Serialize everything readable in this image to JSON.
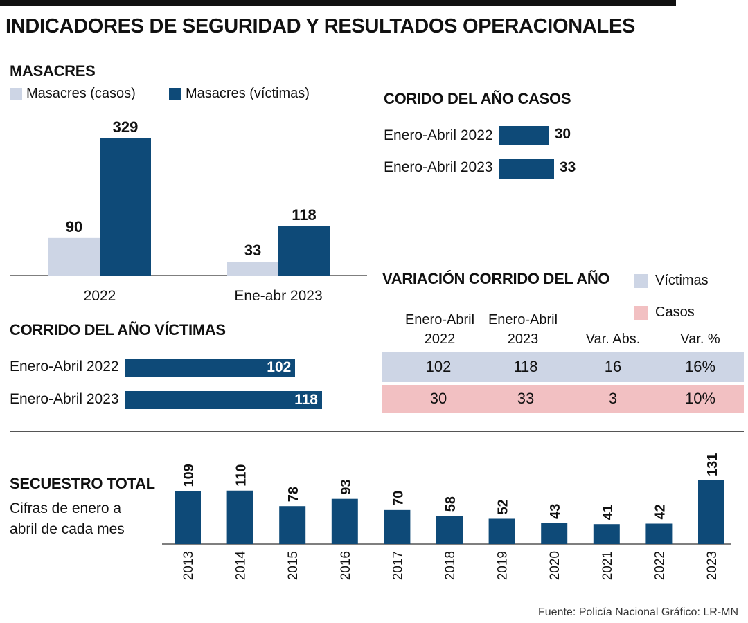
{
  "title": "INDICADORES DE SEGURIDAD Y RESULTADOS OPERACIONALES",
  "colors": {
    "dark": "#0e4a78",
    "light": "#cdd5e5",
    "victimas_row": "#cdd5e5",
    "casos_row": "#f2c0c2"
  },
  "masacres": {
    "title": "MASACRES",
    "legend": [
      "Masacres (casos)",
      "Masacres (víctimas)"
    ]
  },
  "corrido_casos": {
    "title": "CORIDO DEL AÑO CASOS",
    "rows": [
      {
        "label": "Enero-Abril 2022",
        "value": 30
      },
      {
        "label": "Enero-Abril 2023",
        "value": 33
      }
    ]
  },
  "corrido_victimas": {
    "title": "CORRIDO DEL AÑO VÍCTIMAS",
    "rows": [
      {
        "label": "Enero-Abril 2022",
        "value": 102
      },
      {
        "label": "Enero-Abril 2023",
        "value": 118
      }
    ]
  },
  "variacion": {
    "title": "VARIACIÓN CORRIDO DEL AÑO",
    "legend": [
      "Víctimas",
      "Casos"
    ],
    "headers": [
      [
        "Enero-Abril",
        "2022"
      ],
      [
        "Enero-Abril",
        "2023"
      ],
      [
        "Var. Abs."
      ],
      [
        "Var. %"
      ]
    ],
    "rows": [
      {
        "name": "Víctimas",
        "cells": [
          "102",
          "118",
          "16",
          "16%"
        ]
      },
      {
        "name": "Casos",
        "cells": [
          "30",
          "33",
          "3",
          "10%"
        ]
      }
    ]
  },
  "secuestro": {
    "title": "SECUESTRO TOTAL",
    "subtitle": [
      "Cifras de enero a",
      "abril de cada mes"
    ]
  },
  "source": "Fuente: Policía Nacional  Gráfico: LR-MN",
  "chart_data": [
    {
      "type": "bar",
      "title": "MASACRES",
      "categories": [
        "2022",
        "Ene-abr 2023"
      ],
      "series": [
        {
          "name": "Masacres (casos)",
          "values": [
            90,
            33
          ]
        },
        {
          "name": "Masacres (víctimas)",
          "values": [
            329,
            118
          ]
        }
      ]
    },
    {
      "type": "bar",
      "orientation": "horizontal",
      "title": "CORIDO DEL AÑO CASOS",
      "categories": [
        "Enero-Abril 2022",
        "Enero-Abril 2023"
      ],
      "values": [
        30,
        33
      ]
    },
    {
      "type": "bar",
      "orientation": "horizontal",
      "title": "CORRIDO DEL AÑO VÍCTIMAS",
      "categories": [
        "Enero-Abril 2022",
        "Enero-Abril 2023"
      ],
      "values": [
        102,
        118
      ]
    },
    {
      "type": "bar",
      "title": "SECUESTRO TOTAL",
      "categories": [
        "2013",
        "2014",
        "2015",
        "2016",
        "2017",
        "2018",
        "2019",
        "2020",
        "2021",
        "2022",
        "2023"
      ],
      "values": [
        109,
        110,
        78,
        93,
        70,
        58,
        52,
        43,
        41,
        42,
        131
      ]
    }
  ]
}
